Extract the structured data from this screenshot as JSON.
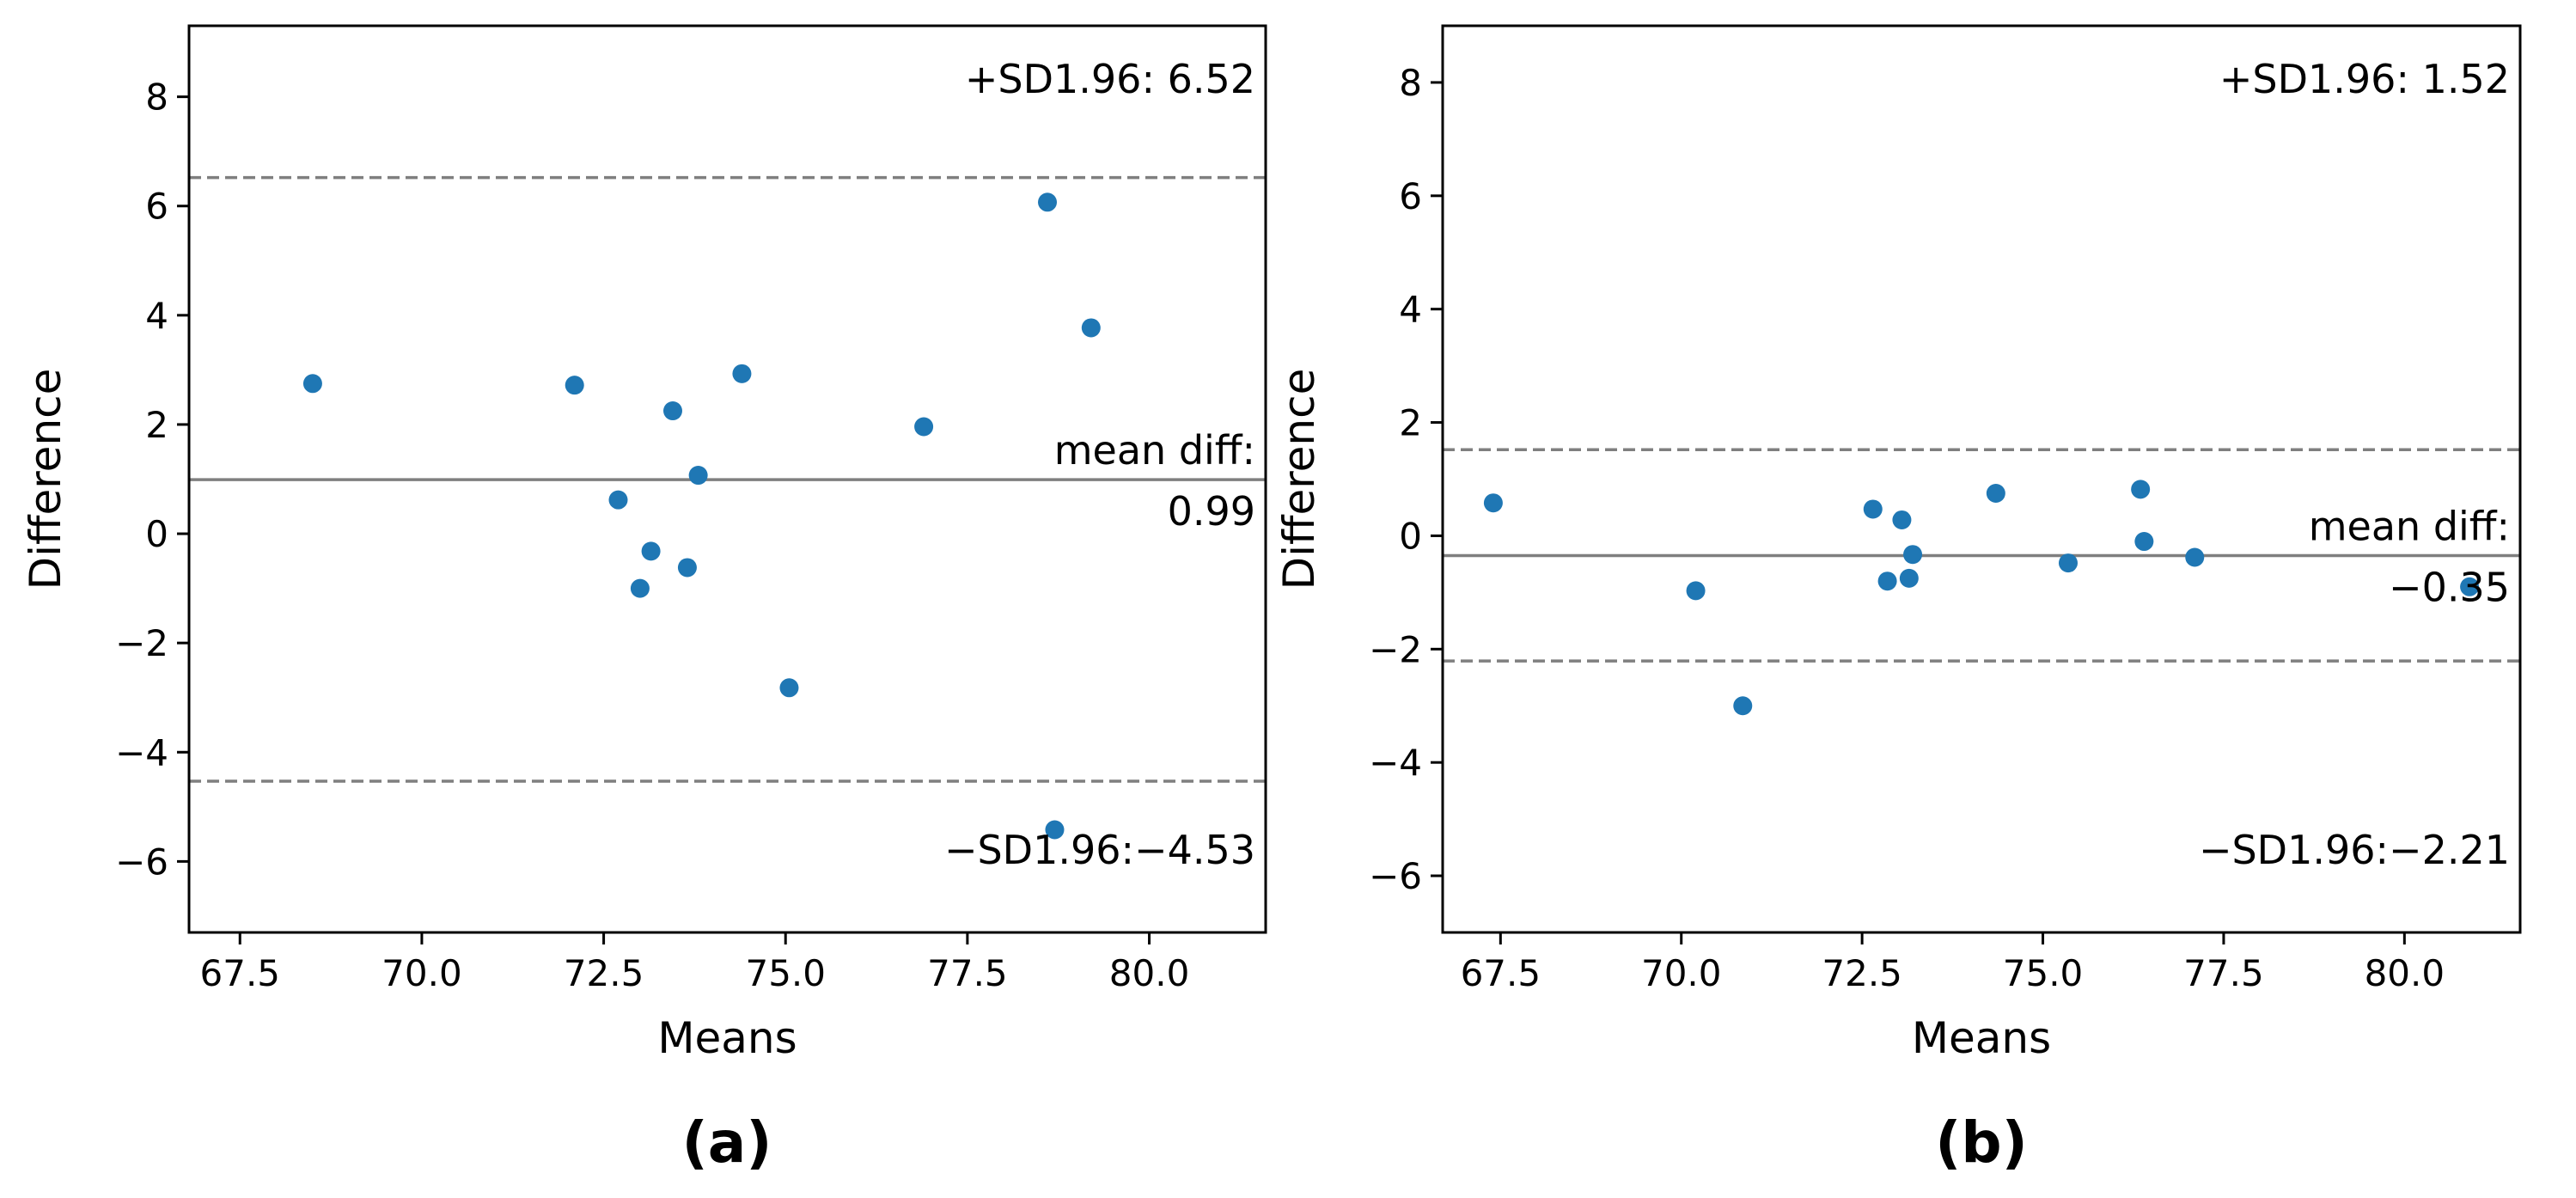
{
  "chart_data": [
    {
      "type": "scatter",
      "panel_label": "(a)",
      "xlabel": "Means",
      "ylabel": "Difference",
      "xlim": [
        66.8,
        81.6
      ],
      "ylim": [
        -7.3,
        9.3
      ],
      "xticks": [
        67.5,
        70.0,
        72.5,
        75.0,
        77.5,
        80.0
      ],
      "xtick_labels": [
        "67.5",
        "70.0",
        "72.5",
        "75.0",
        "77.5",
        "80.0"
      ],
      "yticks": [
        -6,
        -4,
        -2,
        0,
        2,
        4,
        6,
        8
      ],
      "ytick_labels": [
        "−6",
        "−4",
        "−2",
        "0",
        "2",
        "4",
        "6",
        "8"
      ],
      "mean_diff": 0.99,
      "upper_limit": 6.52,
      "lower_limit": -4.53,
      "upper_label": "+SD1.96: 6.52",
      "lower_label": "−SD1.96:−4.53",
      "mean_label_line1": "mean diff:",
      "mean_label_line2": "0.99",
      "point_color": "#1f77b4",
      "points": [
        {
          "x": 68.5,
          "y": 2.75
        },
        {
          "x": 72.1,
          "y": 2.72
        },
        {
          "x": 72.7,
          "y": 0.62
        },
        {
          "x": 73.0,
          "y": -1.0
        },
        {
          "x": 73.15,
          "y": -0.32
        },
        {
          "x": 73.45,
          "y": 2.25
        },
        {
          "x": 73.65,
          "y": -0.62
        },
        {
          "x": 73.8,
          "y": 1.07
        },
        {
          "x": 74.4,
          "y": 2.93
        },
        {
          "x": 75.05,
          "y": -2.82
        },
        {
          "x": 76.9,
          "y": 1.96
        },
        {
          "x": 78.6,
          "y": 6.07
        },
        {
          "x": 79.2,
          "y": 3.77
        },
        {
          "x": 78.7,
          "y": -5.42
        }
      ]
    },
    {
      "type": "scatter",
      "panel_label": "(b)",
      "xlabel": "Means",
      "ylabel": "Difference",
      "xlim": [
        66.7,
        81.6
      ],
      "ylim": [
        -7.0,
        9.0
      ],
      "xticks": [
        67.5,
        70.0,
        72.5,
        75.0,
        77.5,
        80.0
      ],
      "xtick_labels": [
        "67.5",
        "70.0",
        "72.5",
        "75.0",
        "77.5",
        "80.0"
      ],
      "yticks": [
        -6,
        -4,
        -2,
        0,
        2,
        4,
        6,
        8
      ],
      "ytick_labels": [
        "−6",
        "−4",
        "−2",
        "0",
        "2",
        "4",
        "6",
        "8"
      ],
      "mean_diff": -0.35,
      "upper_limit": 1.52,
      "lower_limit": -2.21,
      "upper_label": "+SD1.96: 1.52",
      "lower_label": "−SD1.96:−2.21",
      "mean_label_line1": "mean diff:",
      "mean_label_line2": "−0.35",
      "point_color": "#1f77b4",
      "points": [
        {
          "x": 67.4,
          "y": 0.58
        },
        {
          "x": 70.2,
          "y": -0.97
        },
        {
          "x": 70.85,
          "y": -3.0
        },
        {
          "x": 72.65,
          "y": 0.47
        },
        {
          "x": 72.85,
          "y": -0.8
        },
        {
          "x": 73.05,
          "y": 0.28
        },
        {
          "x": 73.15,
          "y": -0.75
        },
        {
          "x": 73.2,
          "y": -0.33
        },
        {
          "x": 74.35,
          "y": 0.75
        },
        {
          "x": 75.35,
          "y": -0.48
        },
        {
          "x": 76.35,
          "y": 0.82
        },
        {
          "x": 76.4,
          "y": -0.1
        },
        {
          "x": 77.1,
          "y": -0.38
        },
        {
          "x": 80.9,
          "y": -0.9
        }
      ]
    }
  ]
}
